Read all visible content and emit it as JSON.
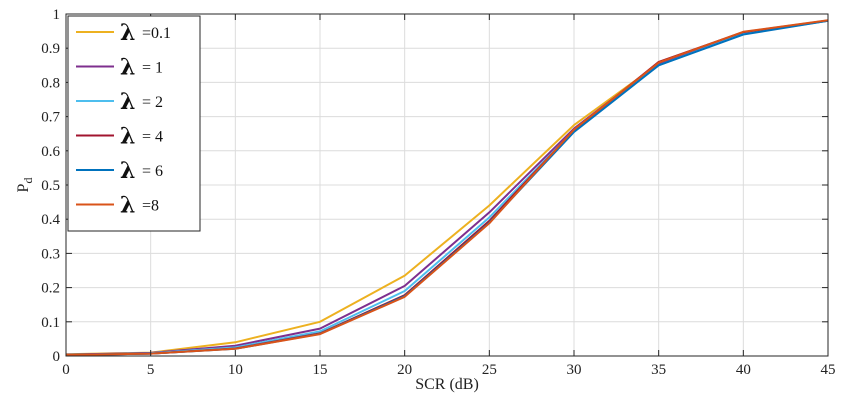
{
  "chart_data": {
    "type": "line",
    "title": "",
    "xlabel": "SCR (dB)",
    "ylabel": "P",
    "ylabel_subscript": "d",
    "xlim": [
      0,
      45
    ],
    "ylim": [
      0,
      1
    ],
    "x_ticks": [
      0,
      5,
      10,
      15,
      20,
      25,
      30,
      35,
      40,
      45
    ],
    "y_ticks": [
      0,
      0.1,
      0.2,
      0.3,
      0.4,
      0.5,
      0.6,
      0.7,
      0.8,
      0.9,
      1
    ],
    "grid": true,
    "legend_position": "top-left",
    "legend_symbol": "λ",
    "x": [
      0,
      5,
      10,
      15,
      20,
      25,
      30,
      35,
      40,
      45
    ],
    "series": [
      {
        "name": "=0.1",
        "color": "#EDB120",
        "values": [
          0.005,
          0.01,
          0.04,
          0.1,
          0.235,
          0.44,
          0.675,
          0.855,
          0.945,
          0.98
        ]
      },
      {
        "name": "= 1",
        "color": "#7E2F8E",
        "values": [
          0.004,
          0.009,
          0.03,
          0.08,
          0.205,
          0.42,
          0.665,
          0.855,
          0.945,
          0.98
        ]
      },
      {
        "name": "= 2",
        "color": "#4DBEEE",
        "values": [
          0.003,
          0.008,
          0.025,
          0.072,
          0.19,
          0.405,
          0.66,
          0.85,
          0.942,
          0.98
        ]
      },
      {
        "name": "= 4",
        "color": "#A2142F",
        "values": [
          0.003,
          0.007,
          0.022,
          0.066,
          0.178,
          0.395,
          0.66,
          0.86,
          0.947,
          0.981
        ]
      },
      {
        "name": "= 6",
        "color": "#0072BD",
        "values": [
          0.003,
          0.007,
          0.021,
          0.065,
          0.175,
          0.39,
          0.655,
          0.85,
          0.94,
          0.98
        ]
      },
      {
        "name": "=8",
        "color": "#D95319",
        "values": [
          0.003,
          0.007,
          0.021,
          0.064,
          0.173,
          0.388,
          0.662,
          0.858,
          0.948,
          0.982
        ]
      }
    ]
  }
}
